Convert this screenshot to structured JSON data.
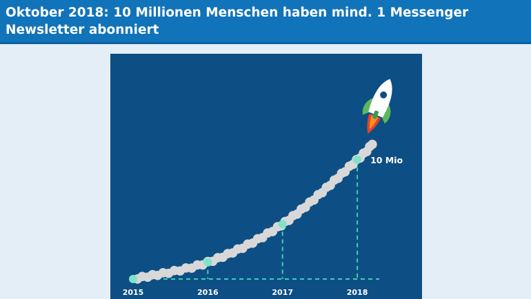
{
  "header": {
    "title": "Oktober 2018: 10 Millionen Menschen haben mind. 1 Messenger Newsletter abonniert"
  },
  "colors": {
    "header_bg": "#1173b9",
    "panel_bg": "#0d4f84",
    "trail": "#d8d8d8",
    "marker": "#7fe3c9",
    "guide": "#3fd1b0",
    "rocket_body": "#ffffff",
    "rocket_fins": "#5cb85c",
    "flame": "#f7931e"
  },
  "chart_data": {
    "type": "line",
    "x": [
      2015,
      2016,
      2017,
      2018
    ],
    "values": [
      0,
      1.4,
      4.6,
      10
    ],
    "xlim": [
      2015,
      2018.35
    ],
    "ylim": [
      0,
      11.9
    ],
    "tick_labels": [
      "2015",
      "2016",
      "2017",
      "2018"
    ],
    "annotations": [
      {
        "x": 2018,
        "y": 10,
        "text": "10 Mio"
      }
    ],
    "grid": false,
    "legend": "none"
  }
}
